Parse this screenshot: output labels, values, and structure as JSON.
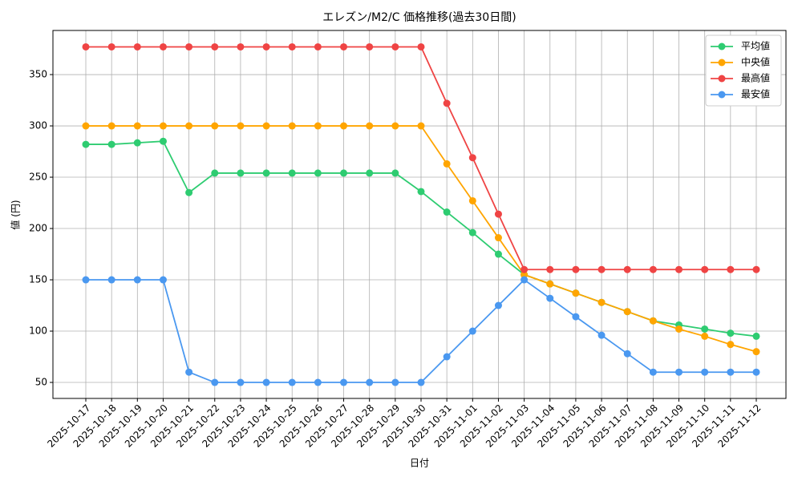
{
  "chart_data": {
    "type": "line",
    "title": "エレズン/M2/C 価格推移(過去30日間)",
    "xlabel": "日付",
    "ylabel": "値 (円)",
    "categories": [
      "2025-10-17",
      "2025-10-18",
      "2025-10-19",
      "2025-10-20",
      "2025-10-21",
      "2025-10-22",
      "2025-10-23",
      "2025-10-24",
      "2025-10-25",
      "2025-10-26",
      "2025-10-27",
      "2025-10-28",
      "2025-10-29",
      "2025-10-30",
      "2025-10-31",
      "2025-11-01",
      "2025-11-02",
      "2025-11-03",
      "2025-11-04",
      "2025-11-05",
      "2025-11-06",
      "2025-11-07",
      "2025-11-08",
      "2025-11-09",
      "2025-11-10",
      "2025-11-11",
      "2025-11-12"
    ],
    "series": [
      {
        "name": "平均値",
        "color": "#2ecc71",
        "values": [
          282,
          282,
          283.5,
          285,
          235,
          254,
          254,
          254,
          254,
          254,
          254,
          254,
          254,
          236,
          216,
          196,
          175,
          155,
          146,
          137,
          128,
          119,
          110,
          106,
          102,
          98,
          95
        ]
      },
      {
        "name": "中央値",
        "color": "#ffa500",
        "values": [
          300,
          300,
          300,
          300,
          300,
          300,
          300,
          300,
          300,
          300,
          300,
          300,
          300,
          300,
          263,
          227,
          191,
          155,
          146,
          137,
          128,
          119,
          110,
          102,
          95,
          87,
          80
        ]
      },
      {
        "name": "最高値",
        "color": "#ef4444",
        "values": [
          377,
          377,
          377,
          377,
          377,
          377,
          377,
          377,
          377,
          377,
          377,
          377,
          377,
          377,
          322,
          269,
          214,
          160,
          160,
          160,
          160,
          160,
          160,
          160,
          160,
          160,
          160
        ]
      },
      {
        "name": "最安値",
        "color": "#4a98f0",
        "values": [
          150,
          150,
          150,
          150,
          60,
          50,
          50,
          50,
          50,
          50,
          50,
          50,
          50,
          50,
          75,
          100,
          125,
          150,
          132,
          114,
          96,
          78,
          60,
          60,
          60,
          60,
          60
        ]
      }
    ],
    "ylim": [
      34.4,
      393
    ],
    "yticks": [
      50,
      100,
      150,
      200,
      250,
      300,
      350
    ],
    "grid": true,
    "legend": "upper right"
  }
}
